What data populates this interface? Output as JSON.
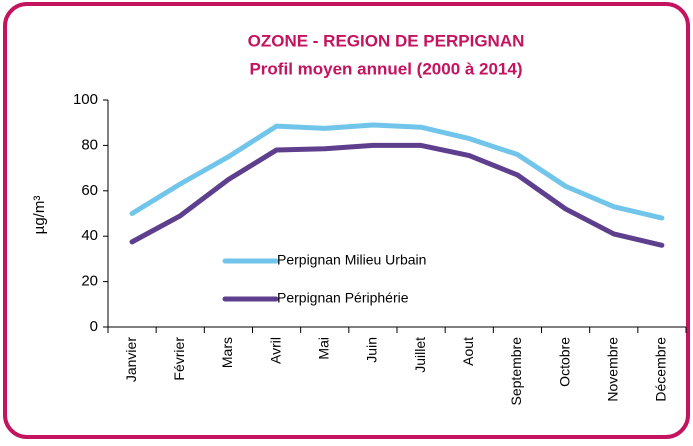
{
  "chart_data": {
    "type": "line",
    "title": "OZONE - REGION DE PERPIGNAN",
    "subtitle": "Profil moyen annuel (2000 à 2014)",
    "y_label": "µg/m³",
    "categories": [
      "Janvier",
      "Février",
      "Mars",
      "Avril",
      "Mai",
      "Juin",
      "Juillet",
      "Aout",
      "Septembre",
      "Octobre",
      "Novembre",
      "Décembre"
    ],
    "series": [
      {
        "name": "Perpignan Milieu Urbain",
        "color": "#72c5ea",
        "values": [
          50,
          63,
          75,
          88.5,
          87.5,
          89,
          88,
          83,
          76,
          62,
          53,
          48
        ]
      },
      {
        "name": "Perpignan Périphérie",
        "color": "#5e3f8e",
        "values": [
          37.5,
          49,
          65,
          78,
          78.5,
          80,
          80,
          75.5,
          67,
          52,
          41,
          36
        ]
      }
    ],
    "ylim": [
      0,
      100
    ],
    "yticks": [
      0,
      20,
      40,
      60,
      80,
      100
    ]
  }
}
